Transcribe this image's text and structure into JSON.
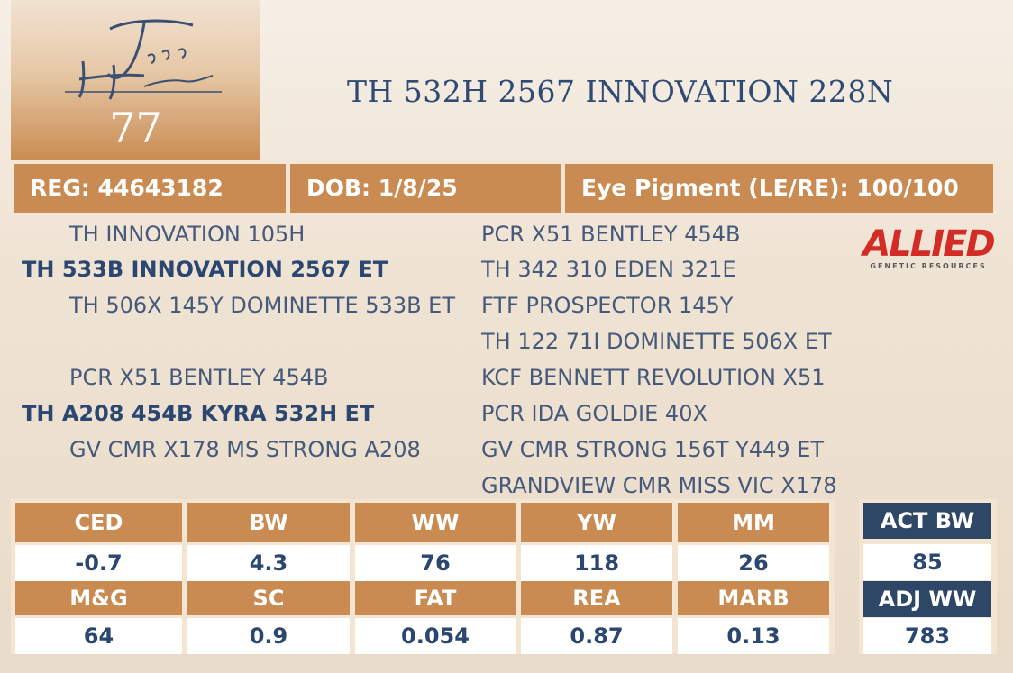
{
  "logo": {
    "text": "Tapp Herefords",
    "lot_number": "77"
  },
  "title": "TH 532H 2567 INNOVATION 228N",
  "info": {
    "reg": "REG: 44643182",
    "dob": "DOB: 1/8/25",
    "eye": "Eye Pigment (LE/RE): 100/100"
  },
  "pedigree_left": [
    "TH INNOVATION 105H",
    "TH 533B INNOVATION 2567 ET",
    "TH 506X 145Y DOMINETTE 533B ET",
    "PCR X51 BENTLEY 454B",
    "TH A208 454B KYRA 532H ET",
    "GV CMR X178 MS STRONG A208"
  ],
  "pedigree_right": [
    "PCR X51 BENTLEY 454B",
    "TH 342 310 EDEN 321E",
    "FTF PROSPECTOR 145Y",
    "TH 122 71I DOMINETTE 506X ET",
    "KCF BENNETT REVOLUTION X51",
    "PCR IDA GOLDIE 40X",
    "GV CMR STRONG 156T Y449 ET",
    "GRANDVIEW CMR MISS VIC X178"
  ],
  "allied": {
    "main": "ALLIED",
    "sub": "GENETIC RESOURCES"
  },
  "epd_row1": {
    "headers": [
      "CED",
      "BW",
      "WW",
      "YW",
      "MM"
    ],
    "values": [
      "-0.7",
      "4.3",
      "76",
      "118",
      "26"
    ]
  },
  "epd_row2": {
    "headers": [
      "M&G",
      "SC",
      "FAT",
      "REA",
      "MARB"
    ],
    "values": [
      "64",
      "0.9",
      "0.054",
      "0.87",
      "0.13"
    ]
  },
  "act": {
    "act_bw_label": "ACT BW",
    "act_bw_value": "85",
    "adj_ww_label": "ADJ WW",
    "adj_ww_value": "783"
  },
  "colors": {
    "accent": "#c98b52",
    "navy": "#2f4766",
    "text": "#2b4670"
  }
}
